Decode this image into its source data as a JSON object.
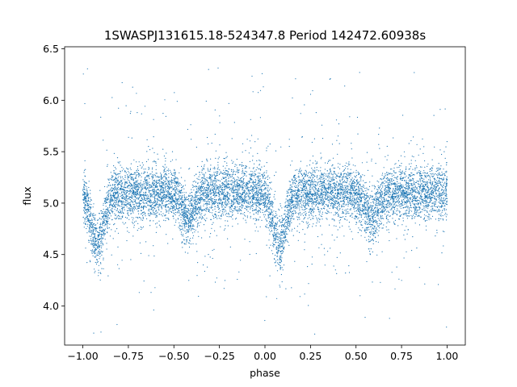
{
  "chart_data": {
    "type": "scatter",
    "title": "1SWASPJ131615.18-524347.8 Period 142472.60938s",
    "xlabel": "phase",
    "ylabel": "flux",
    "xlim": [
      -1.1,
      1.1
    ],
    "ylim": [
      3.62,
      6.52
    ],
    "xticks": [
      -1.0,
      -0.75,
      -0.5,
      -0.25,
      0.0,
      0.25,
      0.5,
      0.75,
      1.0
    ],
    "xtick_labels": [
      "−1.00",
      "−0.75",
      "−0.50",
      "−0.25",
      "0.00",
      "0.25",
      "0.50",
      "0.75",
      "1.00"
    ],
    "yticks": [
      4.0,
      4.5,
      5.0,
      5.5,
      6.0,
      6.5
    ],
    "ytick_labels": [
      "4.0",
      "4.5",
      "5.0",
      "5.5",
      "6.0",
      "6.5"
    ],
    "grid": false,
    "series": [
      {
        "color": "#1f77b4",
        "x_range": [
          -1.0,
          1.0
        ],
        "baseline_flux": 5.1,
        "scatter_sigma": 0.13,
        "dips": [
          {
            "phase": -0.92,
            "min_flux": 4.6
          },
          {
            "phase": -0.42,
            "min_flux": 4.85
          },
          {
            "phase": 0.08,
            "min_flux": 4.6
          },
          {
            "phase": 0.58,
            "min_flux": 4.85
          }
        ]
      }
    ]
  }
}
